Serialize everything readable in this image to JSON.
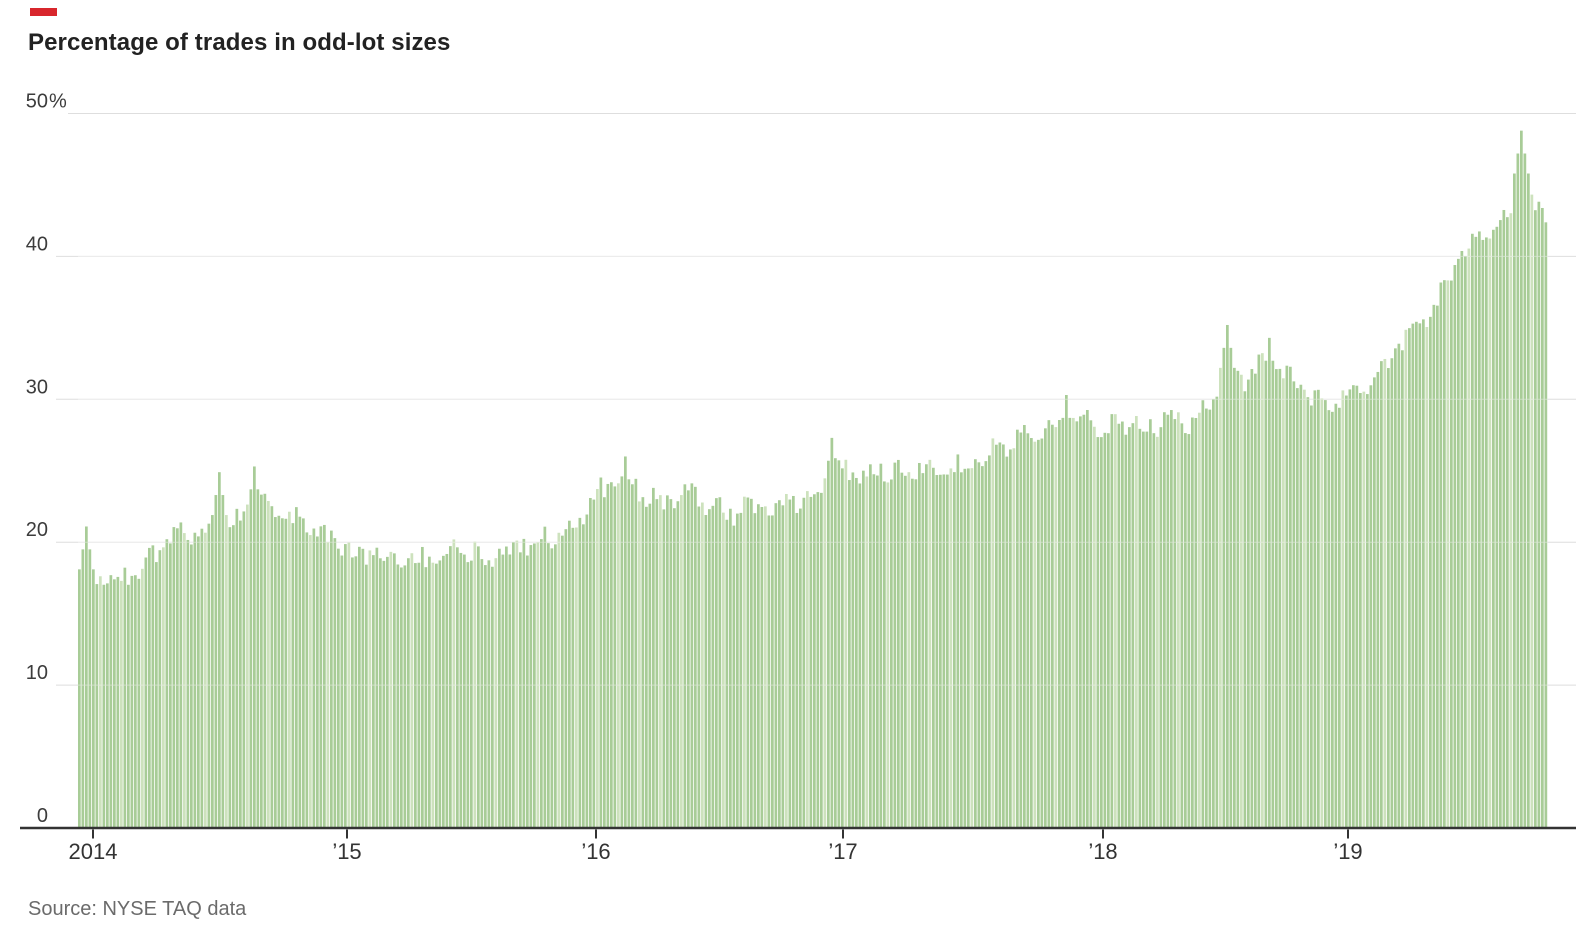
{
  "header": {
    "title": "Percentage of trades in odd-lot sizes",
    "accent_color": "#d8262c"
  },
  "source": {
    "label": "Source: NYSE TAQ data"
  },
  "chart_data": {
    "type": "bar",
    "title": "Percentage of trades in odd-lot sizes",
    "unit": "%",
    "ylim": [
      0,
      50
    ],
    "grid": "horizontal",
    "legend": "none",
    "y_axis": {
      "ticks": [
        0,
        10,
        20,
        30,
        40,
        50
      ],
      "top_tick_suffix": "%"
    },
    "x_axis": {
      "tick_labels": [
        "2014",
        "’15",
        "’16",
        "’17",
        "’18",
        "’19"
      ]
    },
    "bar_color": "#a8cc97",
    "bar_color_light": "#cde2bd",
    "gridline_color": "#dedede",
    "axis_color": "#333333",
    "label_color": "#3c3c3c",
    "months": [
      "2014-01",
      "2014-02",
      "2014-03",
      "2014-04",
      "2014-05",
      "2014-06",
      "2014-07",
      "2014-08",
      "2014-09",
      "2014-10",
      "2014-11",
      "2014-12",
      "2015-01",
      "2015-02",
      "2015-03",
      "2015-04",
      "2015-05",
      "2015-06",
      "2015-07",
      "2015-08",
      "2015-09",
      "2015-10",
      "2015-11",
      "2015-12",
      "2016-01",
      "2016-02",
      "2016-03",
      "2016-04",
      "2016-05",
      "2016-06",
      "2016-07",
      "2016-08",
      "2016-09",
      "2016-10",
      "2016-11",
      "2016-12",
      "2017-01",
      "2017-02",
      "2017-03",
      "2017-04",
      "2017-05",
      "2017-06",
      "2017-07",
      "2017-08",
      "2017-09",
      "2017-10",
      "2017-11",
      "2017-12",
      "2018-01",
      "2018-02",
      "2018-03",
      "2018-04",
      "2018-05",
      "2018-06",
      "2018-07",
      "2018-08",
      "2018-09",
      "2018-10",
      "2018-11",
      "2018-12",
      "2019-01",
      "2019-02",
      "2019-03",
      "2019-04",
      "2019-05",
      "2019-06",
      "2019-07",
      "2019-08",
      "2019-09",
      "2019-10",
      "2019-11"
    ],
    "monthly_avg_values": [
      17.9,
      17.3,
      17.6,
      19.2,
      20.3,
      20.9,
      20.6,
      21.0,
      24.0,
      22.3,
      21.4,
      20.9,
      19.8,
      19.0,
      19.2,
      18.4,
      18.7,
      19.1,
      19.6,
      18.9,
      19.3,
      19.9,
      20.4,
      20.8,
      22.6,
      23.8,
      24.3,
      23.2,
      22.6,
      23.3,
      22.7,
      22.0,
      22.6,
      22.4,
      23.0,
      23.3,
      25.9,
      24.6,
      25.3,
      24.9,
      25.4,
      24.8,
      25.1,
      25.8,
      26.5,
      27.6,
      27.9,
      28.2,
      28.7,
      27.6,
      28.3,
      28.1,
      28.6,
      28.3,
      29.0,
      31.8,
      31.6,
      33.0,
      31.4,
      30.1,
      29.6,
      30.6,
      31.6,
      33.2,
      35.0,
      36.6,
      39.3,
      41.8,
      42.3,
      43.8,
      43.0
    ],
    "notable_spikes": [
      {
        "month": "2014-01",
        "m": 0.3,
        "value": 21.1
      },
      {
        "month": "2014-07",
        "m": 6.7,
        "value": 24.9
      },
      {
        "month": "2014-09",
        "m": 8.5,
        "value": 25.3
      },
      {
        "month": "2016-03",
        "m": 26.4,
        "value": 26.0
      },
      {
        "month": "2017-01",
        "m": 36.3,
        "value": 27.3
      },
      {
        "month": "2017-12",
        "m": 47.7,
        "value": 30.3
      },
      {
        "month": "2018-08",
        "m": 55.5,
        "value": 35.2
      },
      {
        "month": "2018-10",
        "m": 57.5,
        "value": 34.3
      },
      {
        "month": "2019-10",
        "m": 69.6,
        "value": 48.8
      }
    ]
  }
}
